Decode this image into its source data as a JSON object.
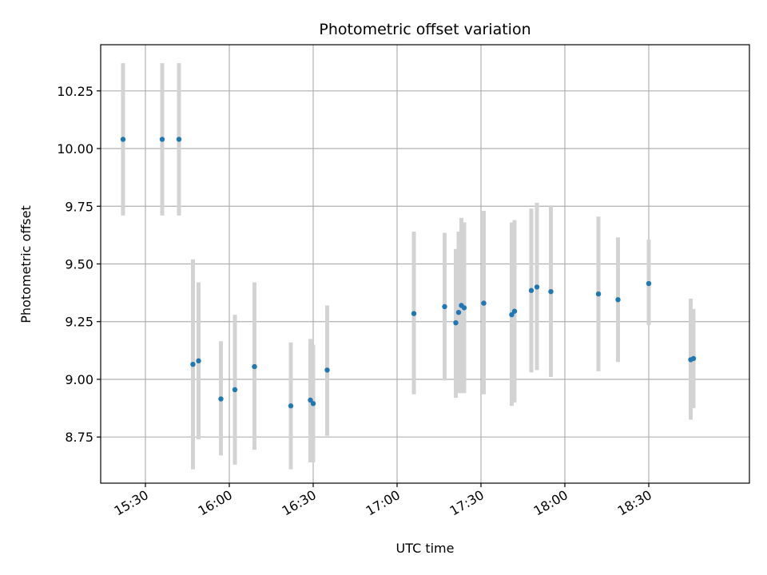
{
  "chart_data": {
    "type": "scatter",
    "title": "Photometric offset variation",
    "xlabel": "UTC time",
    "ylabel": "Photometric offset",
    "x_ticks": [
      "15:30",
      "16:00",
      "16:30",
      "17:00",
      "17:30",
      "18:00",
      "18:30"
    ],
    "y_ticks": [
      "8.75",
      "9.00",
      "9.25",
      "9.50",
      "9.75",
      "10.00",
      "10.25"
    ],
    "xlim": [
      "15:14",
      "19:06"
    ],
    "ylim": [
      8.55,
      10.45
    ],
    "grid": true,
    "marker_color": "#1f77b4",
    "errorbar_color": "#d3d3d3",
    "points": [
      {
        "t": "15:22",
        "y": 10.04,
        "lo": 9.71,
        "hi": 10.37
      },
      {
        "t": "15:36",
        "y": 10.04,
        "lo": 9.71,
        "hi": 10.37
      },
      {
        "t": "15:42",
        "y": 10.04,
        "lo": 9.71,
        "hi": 10.37
      },
      {
        "t": "15:47",
        "y": 9.065,
        "lo": 8.61,
        "hi": 9.52
      },
      {
        "t": "15:49",
        "y": 9.08,
        "lo": 8.74,
        "hi": 9.42
      },
      {
        "t": "15:57",
        "y": 8.915,
        "lo": 8.67,
        "hi": 9.165
      },
      {
        "t": "16:02",
        "y": 8.955,
        "lo": 8.63,
        "hi": 9.28
      },
      {
        "t": "16:09",
        "y": 9.055,
        "lo": 8.695,
        "hi": 9.42
      },
      {
        "t": "16:22",
        "y": 8.885,
        "lo": 8.61,
        "hi": 9.16
      },
      {
        "t": "16:29",
        "y": 8.91,
        "lo": 8.64,
        "hi": 9.175
      },
      {
        "t": "16:30",
        "y": 8.895,
        "lo": 8.64,
        "hi": 9.15
      },
      {
        "t": "16:35",
        "y": 9.04,
        "lo": 8.755,
        "hi": 9.32
      },
      {
        "t": "17:06",
        "y": 9.285,
        "lo": 8.935,
        "hi": 9.64
      },
      {
        "t": "17:17",
        "y": 9.315,
        "lo": 8.995,
        "hi": 9.635
      },
      {
        "t": "17:21",
        "y": 9.245,
        "lo": 8.92,
        "hi": 9.565
      },
      {
        "t": "17:22",
        "y": 9.29,
        "lo": 8.94,
        "hi": 9.64
      },
      {
        "t": "17:23",
        "y": 9.32,
        "lo": 8.94,
        "hi": 9.7
      },
      {
        "t": "17:24",
        "y": 9.31,
        "lo": 8.94,
        "hi": 9.68
      },
      {
        "t": "17:31",
        "y": 9.33,
        "lo": 8.935,
        "hi": 9.73
      },
      {
        "t": "17:41",
        "y": 9.28,
        "lo": 8.885,
        "hi": 9.68
      },
      {
        "t": "17:42",
        "y": 9.295,
        "lo": 8.9,
        "hi": 9.69
      },
      {
        "t": "17:48",
        "y": 9.385,
        "lo": 9.03,
        "hi": 9.74
      },
      {
        "t": "17:50",
        "y": 9.4,
        "lo": 9.04,
        "hi": 9.765
      },
      {
        "t": "17:55",
        "y": 9.38,
        "lo": 9.01,
        "hi": 9.75
      },
      {
        "t": "18:12",
        "y": 9.37,
        "lo": 9.035,
        "hi": 9.705
      },
      {
        "t": "18:19",
        "y": 9.345,
        "lo": 9.075,
        "hi": 9.615
      },
      {
        "t": "18:30",
        "y": 9.415,
        "lo": 9.235,
        "hi": 9.605
      },
      {
        "t": "18:45",
        "y": 9.085,
        "lo": 8.825,
        "hi": 9.35
      },
      {
        "t": "18:46",
        "y": 9.09,
        "lo": 8.875,
        "hi": 9.305
      }
    ]
  }
}
